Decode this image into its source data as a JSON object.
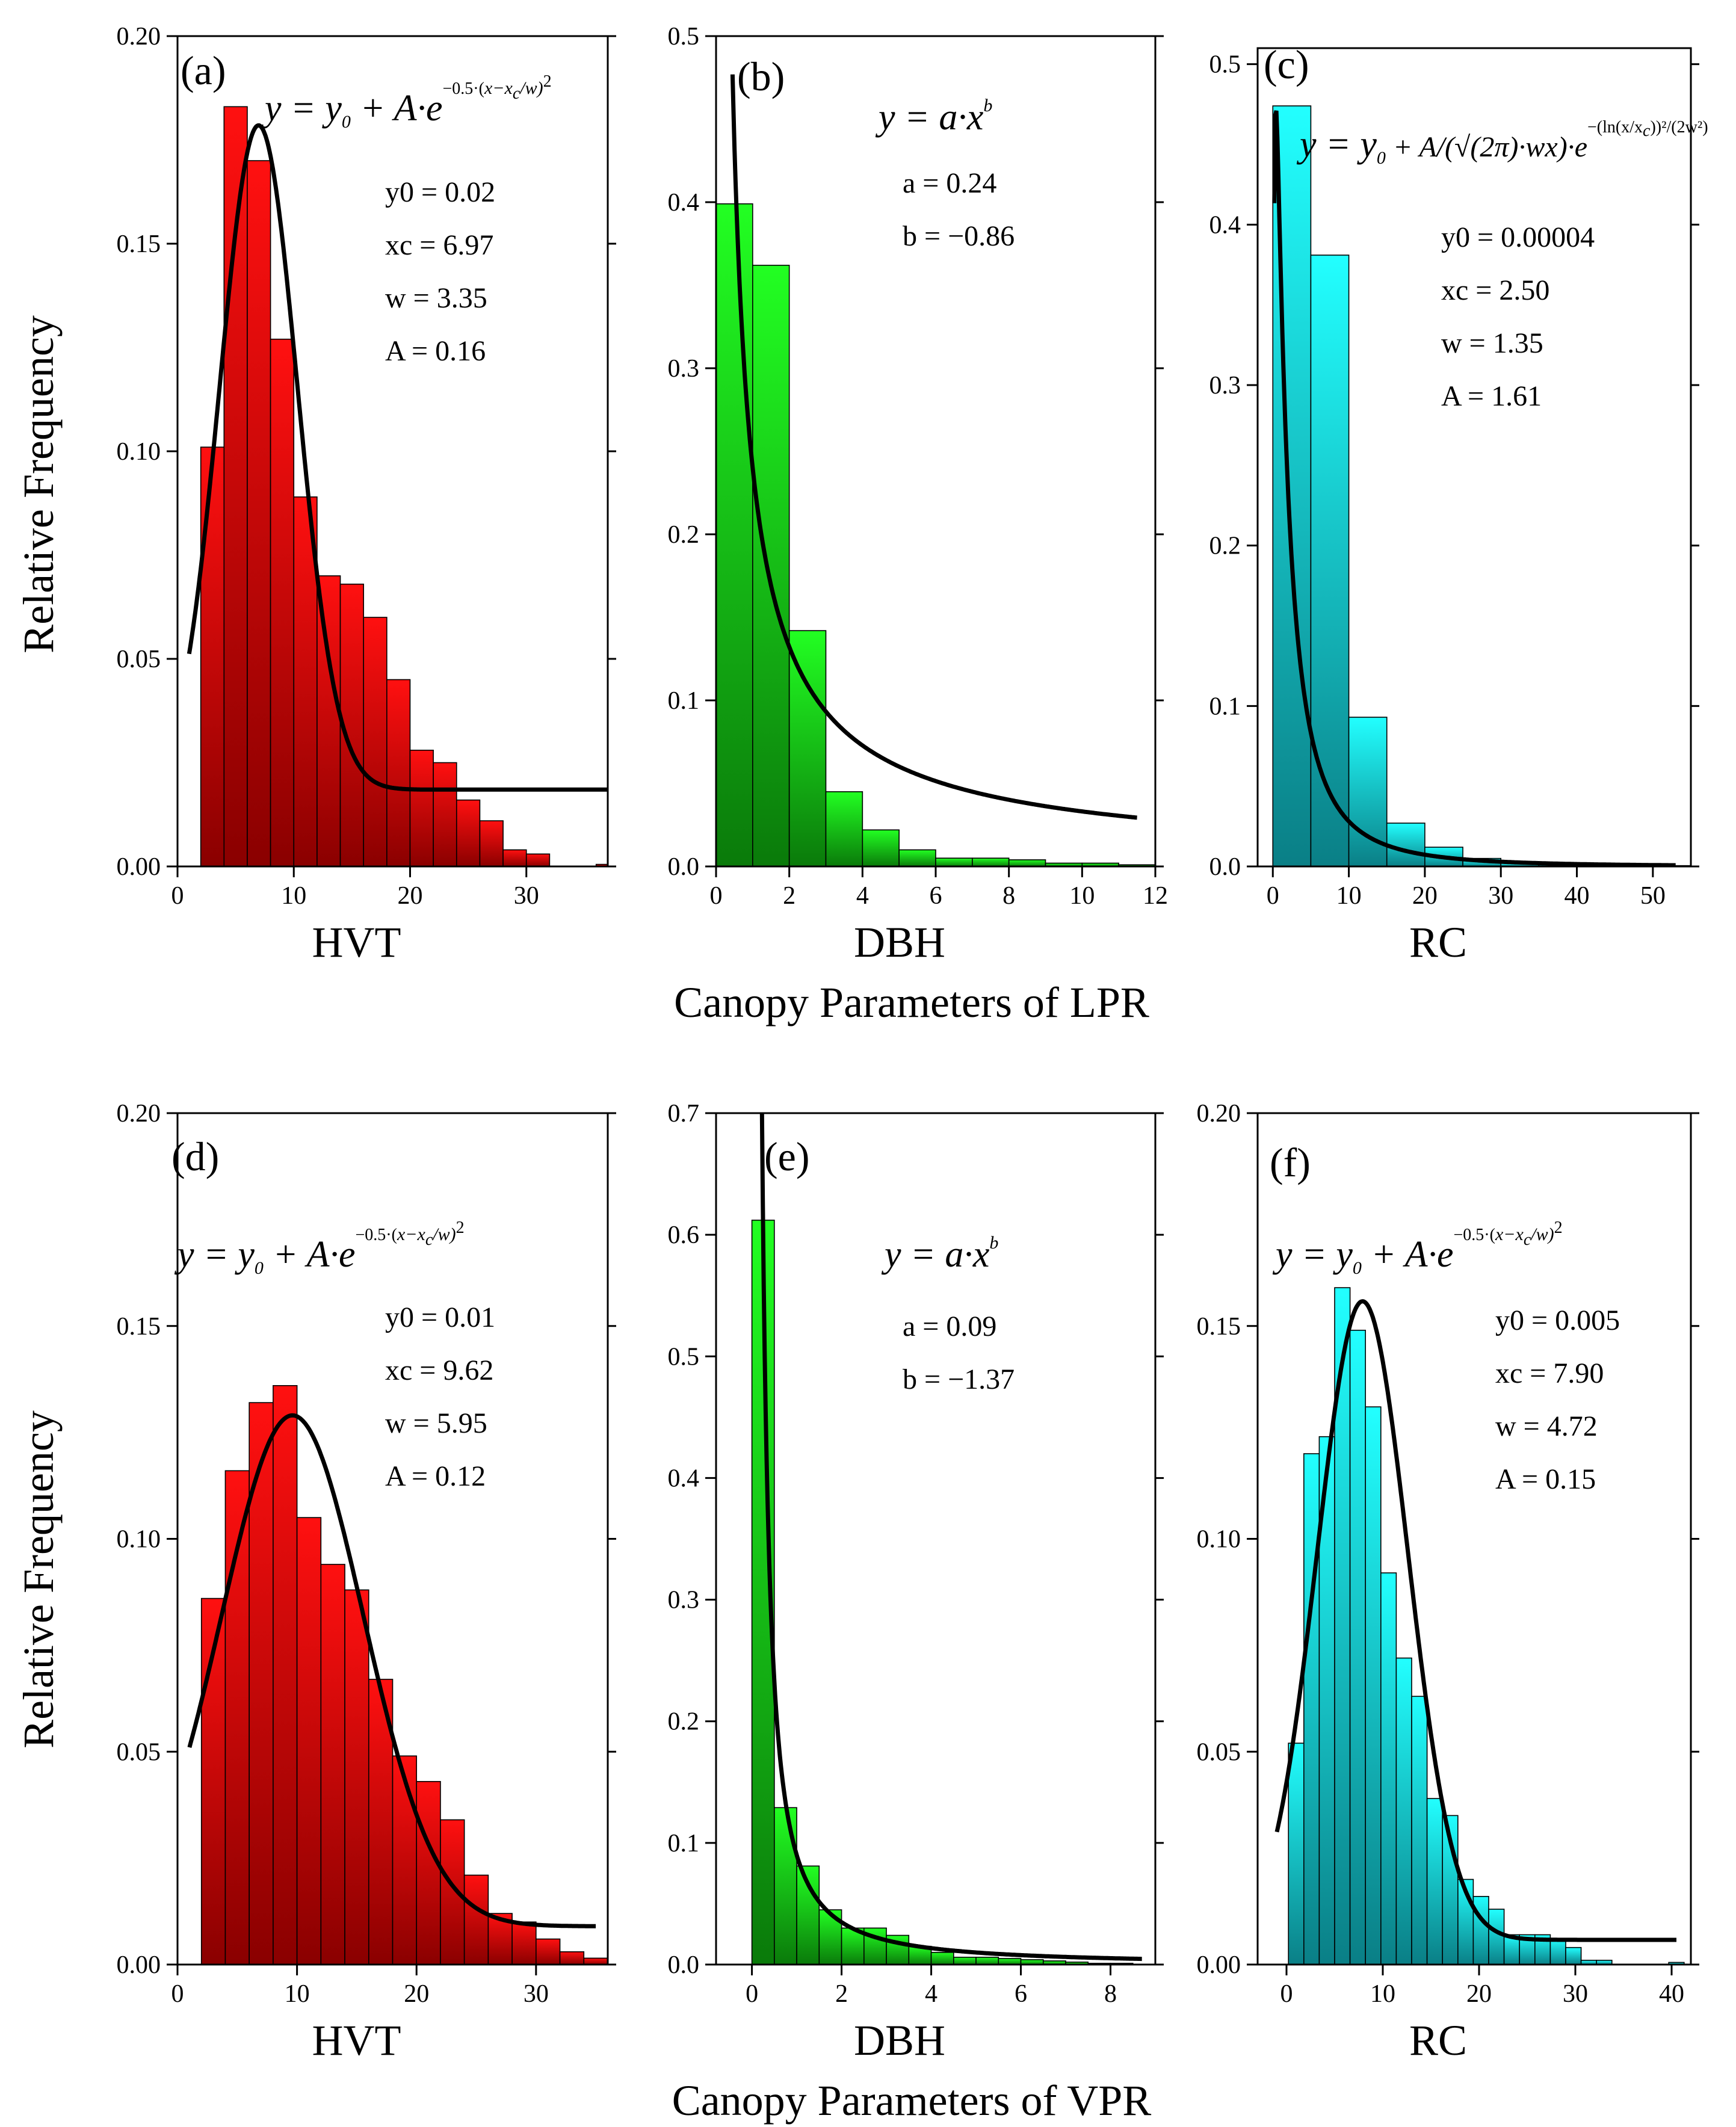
{
  "figure": {
    "ylabel": "Relative Frequency",
    "row_titles": [
      "Canopy Parameters of LPR",
      "Canopy Parameters of VPR"
    ]
  },
  "colors": {
    "red_top": "#ff1010",
    "red_bottom": "#8a0000",
    "green_top": "#22ff22",
    "green_bottom": "#0a7a0a",
    "cyan_top": "#22ffff",
    "cyan_bottom": "#0a7f86",
    "fit_line": "#000000"
  },
  "chart_data": [
    {
      "id": "a",
      "type": "bar",
      "letter": "(a)",
      "xlabel": "HVT",
      "color": "red",
      "xlim": [
        0,
        37
      ],
      "ylim": [
        0,
        0.2
      ],
      "xticks": [
        0,
        10,
        20,
        30
      ],
      "yticks": [
        0,
        0.05,
        0.1,
        0.15,
        0.2
      ],
      "ytick_labels": [
        "0.00",
        "0.05",
        "0.10",
        "0.15",
        "0.20"
      ],
      "bin_width": 2,
      "x": [
        3,
        5,
        7,
        9,
        11,
        13,
        15,
        17,
        19,
        21,
        23,
        25,
        27,
        29,
        31,
        33,
        35,
        37
      ],
      "values": [
        0.101,
        0.183,
        0.17,
        0.127,
        0.089,
        0.07,
        0.068,
        0.06,
        0.045,
        0.028,
        0.025,
        0.016,
        0.011,
        0.004,
        0.003,
        0.0,
        0.0,
        0.0005
      ],
      "fit": {
        "model": "gauss",
        "y0": 0.02,
        "xc": 6.97,
        "w": 3.35,
        "A": 0.16,
        "x_from": 1,
        "x_to": 37,
        "y_offset": -0.0015
      },
      "formula": "gauss",
      "params": [
        "y0 = 0.02",
        "xc = 6.97",
        "w = 3.35",
        "A = 0.16"
      ]
    },
    {
      "id": "b",
      "type": "bar",
      "letter": "(b)",
      "xlabel": "DBH",
      "color": "green",
      "xlim": [
        0,
        12
      ],
      "ylim": [
        0,
        0.5
      ],
      "xticks": [
        0,
        2,
        4,
        6,
        8,
        10,
        12
      ],
      "yticks": [
        0,
        0.1,
        0.2,
        0.3,
        0.4,
        0.5
      ],
      "ytick_labels": [
        "0.0",
        "0.1",
        "0.2",
        "0.3",
        "0.4",
        "0.5"
      ],
      "bin_width": 1,
      "x": [
        0.5,
        1.5,
        2.5,
        3.5,
        4.5,
        5.5,
        6.5,
        7.5,
        8.5,
        9.5,
        10.5,
        11.5
      ],
      "values": [
        0.399,
        0.362,
        0.142,
        0.045,
        0.022,
        0.01,
        0.005,
        0.005,
        0.004,
        0.002,
        0.002,
        0.001
      ],
      "fit": {
        "model": "power",
        "a": 0.24,
        "b": -0.86,
        "x_from": 0.45,
        "x_to": 11.5
      },
      "formula": "power",
      "params": [
        "a = 0.24",
        "b = −0.86"
      ]
    },
    {
      "id": "c",
      "type": "bar",
      "letter": "(c)",
      "xlabel": "RC",
      "color": "cyan",
      "xlim": [
        -2,
        55
      ],
      "ylim": [
        0,
        0.51
      ],
      "xticks": [
        0,
        10,
        20,
        30,
        40,
        50
      ],
      "yticks": [
        0,
        0.1,
        0.2,
        0.3,
        0.4,
        0.5
      ],
      "ytick_labels": [
        "0.0",
        "0.1",
        "0.2",
        "0.3",
        "0.4",
        "0.5"
      ],
      "bin_width": 5,
      "x": [
        2.5,
        7.5,
        12.5,
        17.5,
        22.5,
        27.5,
        32.5,
        37.5,
        42.5,
        47.5,
        52.5
      ],
      "values": [
        0.474,
        0.381,
        0.093,
        0.027,
        0.012,
        0.005,
        0.002,
        0.001,
        0.001,
        0.0005,
        0.0005
      ],
      "fit": {
        "model": "lognormal",
        "y0": 4e-05,
        "xc": 2.5,
        "w": 1.35,
        "A": 1.61,
        "x_from": 0.2,
        "x_to": 53
      },
      "formula": "lognormal",
      "params": [
        "y0 = 0.00004",
        "xc = 2.50",
        "w = 1.35",
        "A = 1.61"
      ]
    },
    {
      "id": "d",
      "type": "bar",
      "letter": "(d)",
      "xlabel": "HVT",
      "color": "red",
      "xlim": [
        0,
        36
      ],
      "ylim": [
        0,
        0.2
      ],
      "xticks": [
        0,
        10,
        20,
        30
      ],
      "yticks": [
        0,
        0.05,
        0.1,
        0.15,
        0.2
      ],
      "ytick_labels": [
        "0.00",
        "0.05",
        "0.10",
        "0.15",
        "0.20"
      ],
      "bin_width": 2,
      "x": [
        3,
        5,
        7,
        9,
        11,
        13,
        15,
        17,
        19,
        21,
        23,
        25,
        27,
        29,
        31,
        33,
        35
      ],
      "values": [
        0.086,
        0.116,
        0.132,
        0.136,
        0.105,
        0.094,
        0.088,
        0.067,
        0.049,
        0.043,
        0.034,
        0.021,
        0.012,
        0.01,
        0.006,
        0.003,
        0.0015
      ],
      "fit": {
        "model": "gauss",
        "y0": 0.01,
        "xc": 9.62,
        "w": 5.95,
        "A": 0.12,
        "x_from": 1,
        "x_to": 35,
        "y_offset": -0.001
      },
      "formula": "gauss",
      "params": [
        "y0 = 0.01",
        "xc = 9.62",
        "w = 5.95",
        "A = 0.12"
      ]
    },
    {
      "id": "e",
      "type": "bar",
      "letter": "(e)",
      "xlabel": "DBH",
      "color": "green",
      "xlim": [
        -0.8,
        9
      ],
      "ylim": [
        0,
        0.7
      ],
      "xticks": [
        0,
        2,
        4,
        6,
        8
      ],
      "yticks": [
        0,
        0.1,
        0.2,
        0.3,
        0.4,
        0.5,
        0.6,
        0.7
      ],
      "ytick_labels": [
        "0.0",
        "0.1",
        "0.2",
        "0.3",
        "0.4",
        "0.5",
        "0.6",
        "0.7"
      ],
      "bin_width": 0.5,
      "x": [
        0.25,
        0.75,
        1.25,
        1.75,
        2.25,
        2.75,
        3.25,
        3.75,
        4.25,
        4.75,
        5.25,
        5.75,
        6.25,
        6.75,
        7.25,
        7.75,
        8.25
      ],
      "values": [
        0.612,
        0.129,
        0.081,
        0.045,
        0.03,
        0.03,
        0.024,
        0.015,
        0.01,
        0.006,
        0.006,
        0.005,
        0.004,
        0.003,
        0.002,
        0.001,
        0.001
      ],
      "fit": {
        "model": "power",
        "a": 0.09,
        "b": -1.37,
        "x_from": 0.2,
        "x_to": 8.7
      },
      "formula": "power",
      "params": [
        "a = 0.09",
        "b = −1.37"
      ]
    },
    {
      "id": "f",
      "type": "bar",
      "letter": "(f)",
      "xlabel": "RC",
      "color": "cyan",
      "xlim": [
        -3,
        42
      ],
      "ylim": [
        0,
        0.2
      ],
      "xticks": [
        0,
        10,
        20,
        30,
        40
      ],
      "yticks": [
        0,
        0.05,
        0.1,
        0.15,
        0.2
      ],
      "ytick_labels": [
        "0.00",
        "0.05",
        "0.10",
        "0.15",
        "0.20"
      ],
      "bin_width": 1.6,
      "x": [
        1.0,
        2.6,
        4.2,
        5.8,
        7.4,
        9.0,
        10.6,
        12.2,
        13.8,
        15.4,
        17.0,
        18.6,
        20.2,
        21.8,
        23.4,
        25.0,
        26.6,
        28.2,
        29.8,
        31.4,
        33.0,
        34.6,
        40.5
      ],
      "values": [
        0.052,
        0.12,
        0.124,
        0.159,
        0.149,
        0.131,
        0.092,
        0.072,
        0.063,
        0.039,
        0.035,
        0.02,
        0.016,
        0.013,
        0.007,
        0.007,
        0.007,
        0.006,
        0.004,
        0.001,
        0.001,
        0.0,
        0.0005
      ],
      "fit": {
        "model": "gauss",
        "y0": 0.005,
        "xc": 7.9,
        "w": 4.72,
        "A": 0.15,
        "x_from": -1,
        "x_to": 40.5,
        "y_offset": 0.0008
      },
      "formula": "gauss",
      "params": [
        "y0 = 0.005",
        "xc = 7.90",
        "w = 4.72",
        "A = 0.15"
      ]
    }
  ]
}
